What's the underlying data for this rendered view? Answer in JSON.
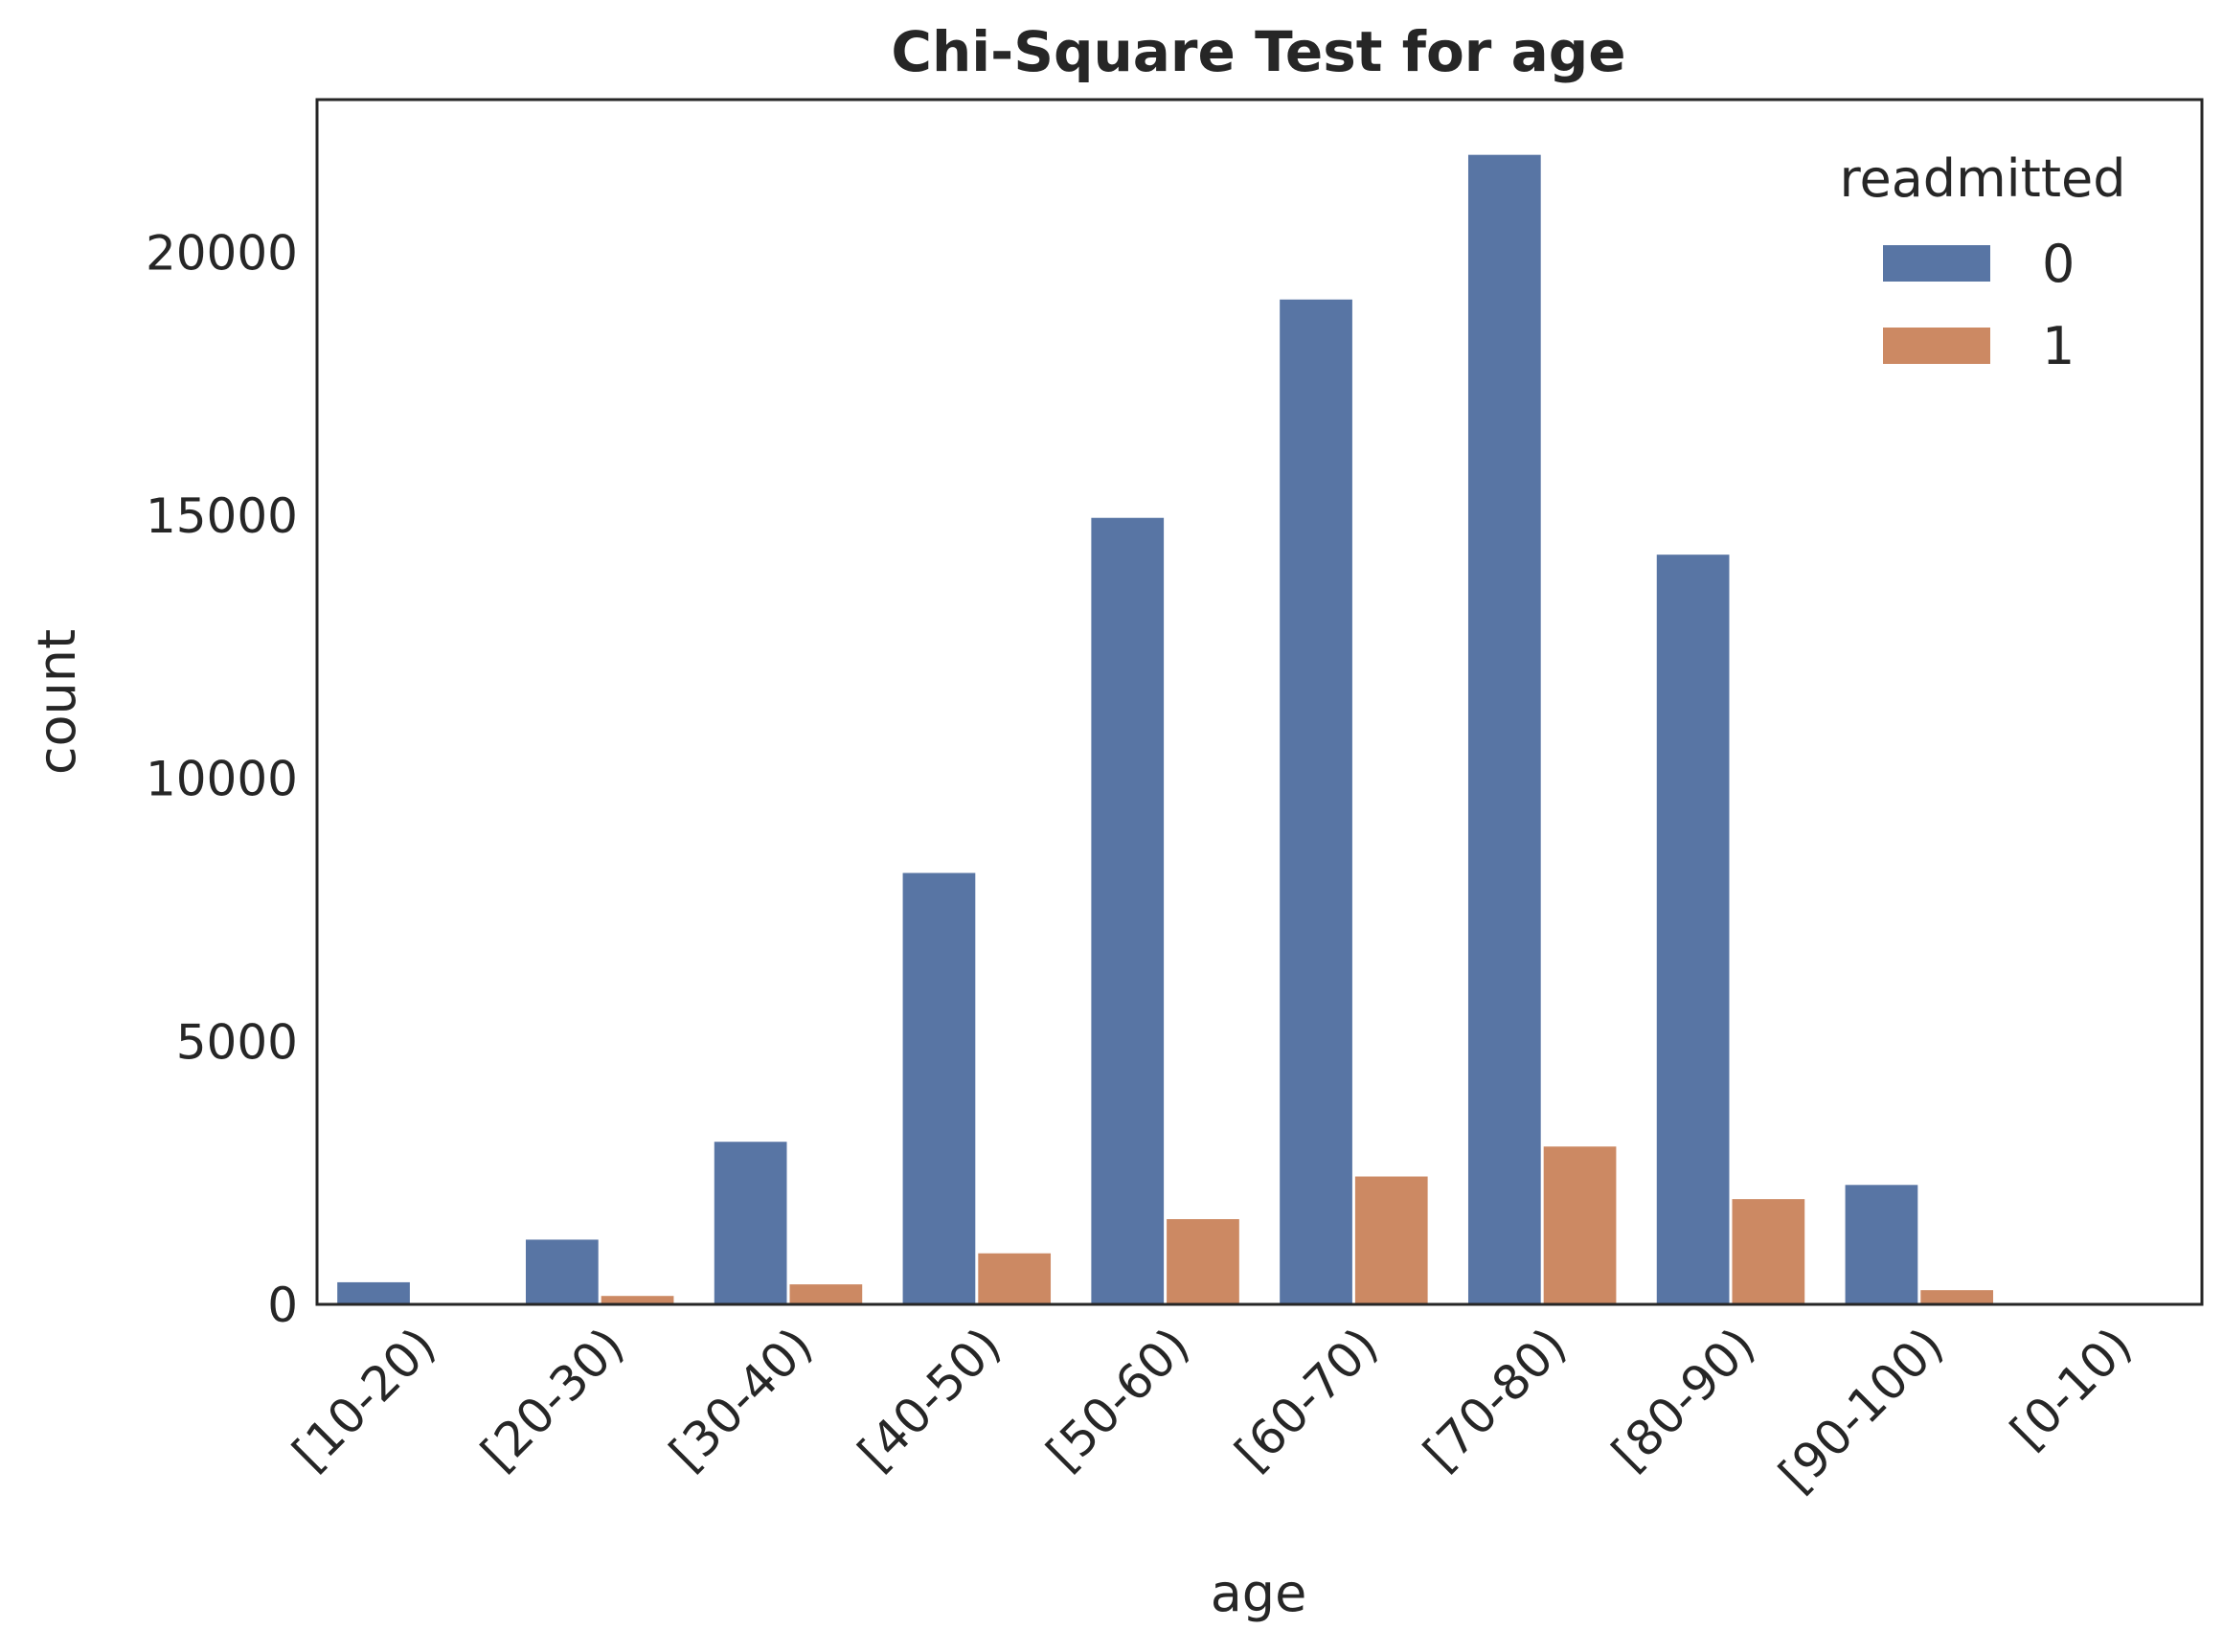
{
  "chart_data": {
    "type": "bar",
    "title": "Chi-Square Test for age",
    "xlabel": "age",
    "ylabel": "count",
    "categories": [
      "[10-20)",
      "[20-30)",
      "[30-40)",
      "[40-50)",
      "[50-60)",
      "[60-70)",
      "[70-80)",
      "[80-90)",
      "[90-100)",
      "[0-10)"
    ],
    "series": [
      {
        "name": "0",
        "color": "#5875a4",
        "values": [
          420,
          1230,
          3090,
          8200,
          14950,
          19100,
          21850,
          14250,
          2270,
          0
        ]
      },
      {
        "name": "1",
        "color": "#cc8963",
        "values": [
          0,
          160,
          380,
          970,
          1620,
          2430,
          3000,
          2000,
          270,
          0
        ]
      }
    ],
    "ylim": [
      0,
      22900
    ],
    "yticks": [
      "0",
      "5000",
      "10000",
      "15000",
      "20000"
    ],
    "legend": {
      "title": "readmitted",
      "position": "top-right"
    },
    "grid": false
  }
}
